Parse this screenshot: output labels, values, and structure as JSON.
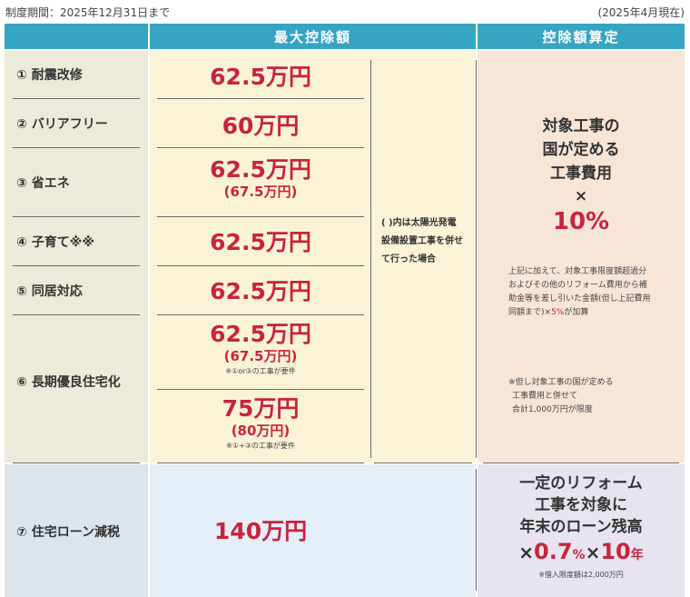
{
  "period": "制度期間：2025年12月31日まで",
  "as_of": "(2025年4月現在)",
  "headers": {
    "max": "最大控除額",
    "calc": "控除額算定"
  },
  "items": [
    {
      "label": "① 耐震改修"
    },
    {
      "label": "② バリアフリー"
    },
    {
      "label": "③ 省エネ"
    },
    {
      "label": "④ 子育て※※"
    },
    {
      "label": "⑤ 同居対応"
    },
    {
      "label": "⑥ 長期優良住宅化"
    },
    {
      "label": "⑦ 住宅ローン減税"
    }
  ],
  "amounts": {
    "a1": "62.5万円",
    "a2": "60万円",
    "a3": "62.5万円",
    "a3_sub": "(67.5万円)",
    "a4": "62.5万円",
    "a5": "62.5万円",
    "a6a": "62.5万円",
    "a6a_sub": "(67.5万円)",
    "a6a_note": "※①or③の工事が要件",
    "a6b": "75万円",
    "a6b_sub": "(80万円)",
    "a6b_note": "※①+③の工事が要件",
    "a7": "140万円"
  },
  "solar_note": {
    "l1": "( )内は太陽光発電",
    "l2": "設備設置工事を併せ",
    "l3": "て行った場合"
  },
  "formula": {
    "l1": "対象工事の",
    "l2": "国が定める",
    "l3": "工事費用",
    "times": "×",
    "pct": "10%",
    "note1": "上記に加えて、対象工事限度額超過分およびその他のリフォーム費用から補助金等を差し引いた金額(但し上記費用同額まで)×",
    "note1_red": "5%",
    "note1_end": "が加算",
    "note2_l1": "※但し対象工事の国が定める",
    "note2_l2": "工事費用と併せて",
    "note2_l3": "合計1,000万円が限度"
  },
  "loan": {
    "l1": "一定のリフォーム",
    "l2": "工事を対象に",
    "l3": "年末のローン残高",
    "x1": "×",
    "rate": "0.7",
    "pct": "%",
    "x2": "×",
    "years": "10",
    "yr": "年",
    "note": "※借入限度額は2,000万円"
  }
}
